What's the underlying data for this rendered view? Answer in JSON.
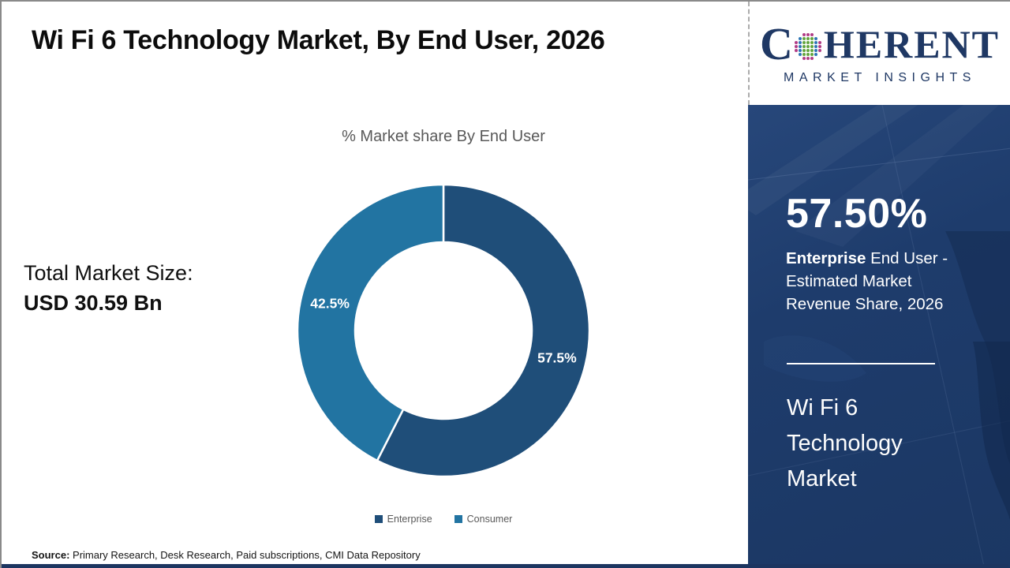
{
  "page": {
    "title": "Wi Fi 6 Technology Market, By End User, 2026",
    "source_label": "Source:",
    "source_text": " Primary Research, Desk Research, Paid subscriptions, CMI Data Repository"
  },
  "logo": {
    "prefix": "C",
    "suffix": "HERENT",
    "subtitle": "MARKET INSIGHTS",
    "brand_color": "#1F3864"
  },
  "left_panel": {
    "total_label": "Total Market Size:",
    "total_value": "USD 30.59 Bn"
  },
  "sidebar": {
    "stat_value": "57.50%",
    "stat_desc_bold": "Enterprise",
    "stat_desc_rest": " End User - Estimated Market Revenue Share, 2026",
    "market_name_lines": [
      "Wi Fi 6",
      "Technology",
      "Market"
    ],
    "panel_color": "#1E3C6C"
  },
  "chart_data": {
    "type": "pie",
    "donut": true,
    "title": "% Market share By End User",
    "categories": [
      "Enterprise",
      "Consumer"
    ],
    "values": [
      57.5,
      42.5
    ],
    "slice_labels": [
      "57.5%",
      "42.5%"
    ],
    "colors": [
      "#1F4E79",
      "#2274A2"
    ],
    "start_angle_deg": 0,
    "direction": "clockwise",
    "legend_position": "bottom"
  }
}
